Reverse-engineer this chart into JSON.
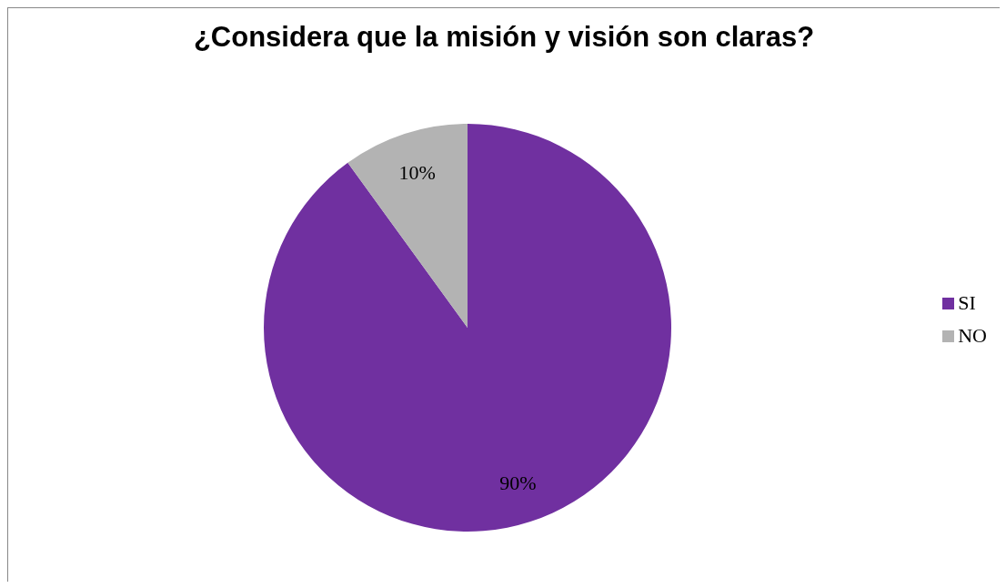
{
  "chart_data": {
    "type": "pie",
    "title": "¿Considera que la misión y visión son claras?",
    "categories": [
      "SI",
      "NO"
    ],
    "values": [
      90,
      10
    ],
    "value_labels": [
      "90%",
      "10%"
    ],
    "colors": [
      "#7030a0",
      "#b3b3b3"
    ],
    "legend": "right"
  }
}
